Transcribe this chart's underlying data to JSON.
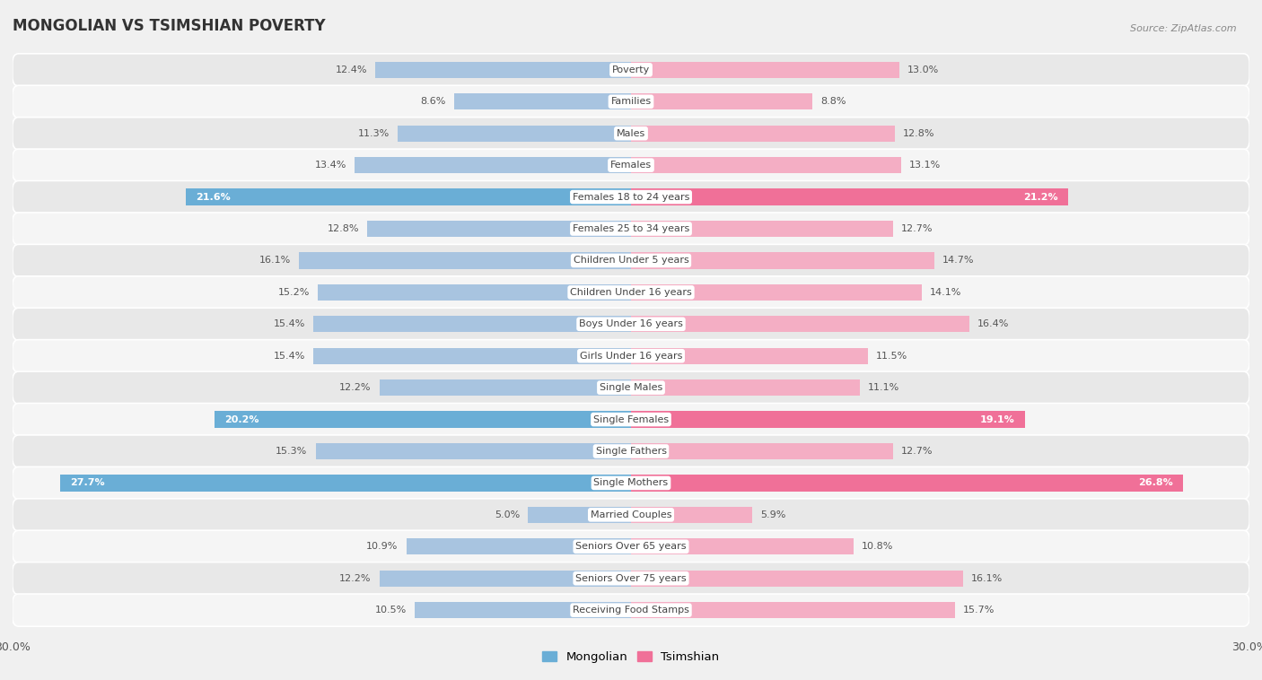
{
  "title": "MONGOLIAN VS TSIMSHIAN POVERTY",
  "source": "Source: ZipAtlas.com",
  "categories": [
    "Poverty",
    "Families",
    "Males",
    "Females",
    "Females 18 to 24 years",
    "Females 25 to 34 years",
    "Children Under 5 years",
    "Children Under 16 years",
    "Boys Under 16 years",
    "Girls Under 16 years",
    "Single Males",
    "Single Females",
    "Single Fathers",
    "Single Mothers",
    "Married Couples",
    "Seniors Over 65 years",
    "Seniors Over 75 years",
    "Receiving Food Stamps"
  ],
  "mongolian": [
    12.4,
    8.6,
    11.3,
    13.4,
    21.6,
    12.8,
    16.1,
    15.2,
    15.4,
    15.4,
    12.2,
    20.2,
    15.3,
    27.7,
    5.0,
    10.9,
    12.2,
    10.5
  ],
  "tsimshian": [
    13.0,
    8.8,
    12.8,
    13.1,
    21.2,
    12.7,
    14.7,
    14.1,
    16.4,
    11.5,
    11.1,
    19.1,
    12.7,
    26.8,
    5.9,
    10.8,
    16.1,
    15.7
  ],
  "mongolian_color_normal": "#a8c4e0",
  "mongolian_color_highlight": "#6aaed6",
  "tsimshian_color_normal": "#f4aec4",
  "tsimshian_color_highlight": "#f07098",
  "highlight_rows": [
    4,
    11,
    13
  ],
  "max_val": 30.0,
  "legend_mongolian": "Mongolian",
  "legend_tsimshian": "Tsimshian",
  "background_color": "#f0f0f0",
  "row_bg_light": "#f5f5f5",
  "row_bg_dark": "#e8e8e8"
}
